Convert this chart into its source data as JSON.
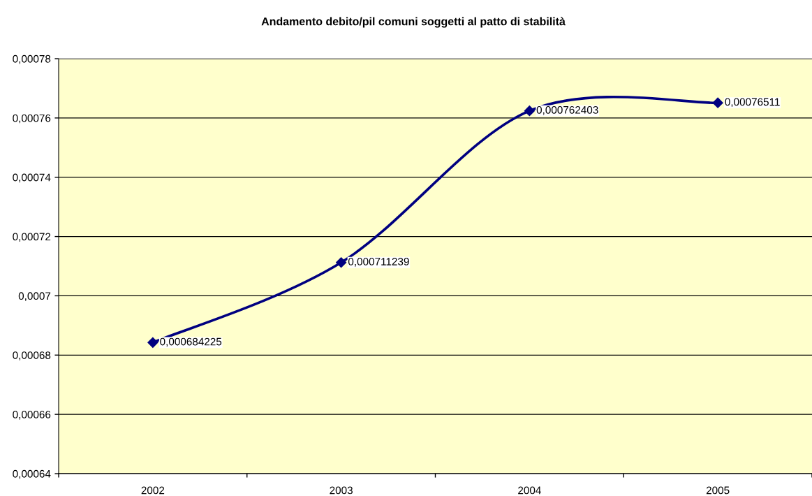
{
  "chart_data": {
    "type": "line",
    "title": "Andamento debito/pil comuni soggetti al patto di stabilità",
    "categories": [
      "2002",
      "2003",
      "2004",
      "2005"
    ],
    "series": [
      {
        "color": "#000080",
        "values": [
          0.000684225,
          0.000711239,
          0.000762403,
          0.00076511
        ],
        "value_labels": [
          "0,000684225",
          "0,000711239",
          "0,000762403",
          "0,00076511"
        ]
      }
    ],
    "ylim": [
      0.00064,
      0.00078
    ],
    "yticks": [
      {
        "value": 0.00064,
        "label": "0,00064"
      },
      {
        "value": 0.00066,
        "label": "0,00066"
      },
      {
        "value": 0.00068,
        "label": "0,00068"
      },
      {
        "value": 0.0007,
        "label": "0,0007"
      },
      {
        "value": 0.00072,
        "label": "0,00072"
      },
      {
        "value": 0.00074,
        "label": "0,00074"
      },
      {
        "value": 0.00076,
        "label": "0,00076"
      },
      {
        "value": 0.00078,
        "label": "0,00078"
      }
    ],
    "grid": "y",
    "marker": "diamond",
    "line_style": "solid"
  }
}
